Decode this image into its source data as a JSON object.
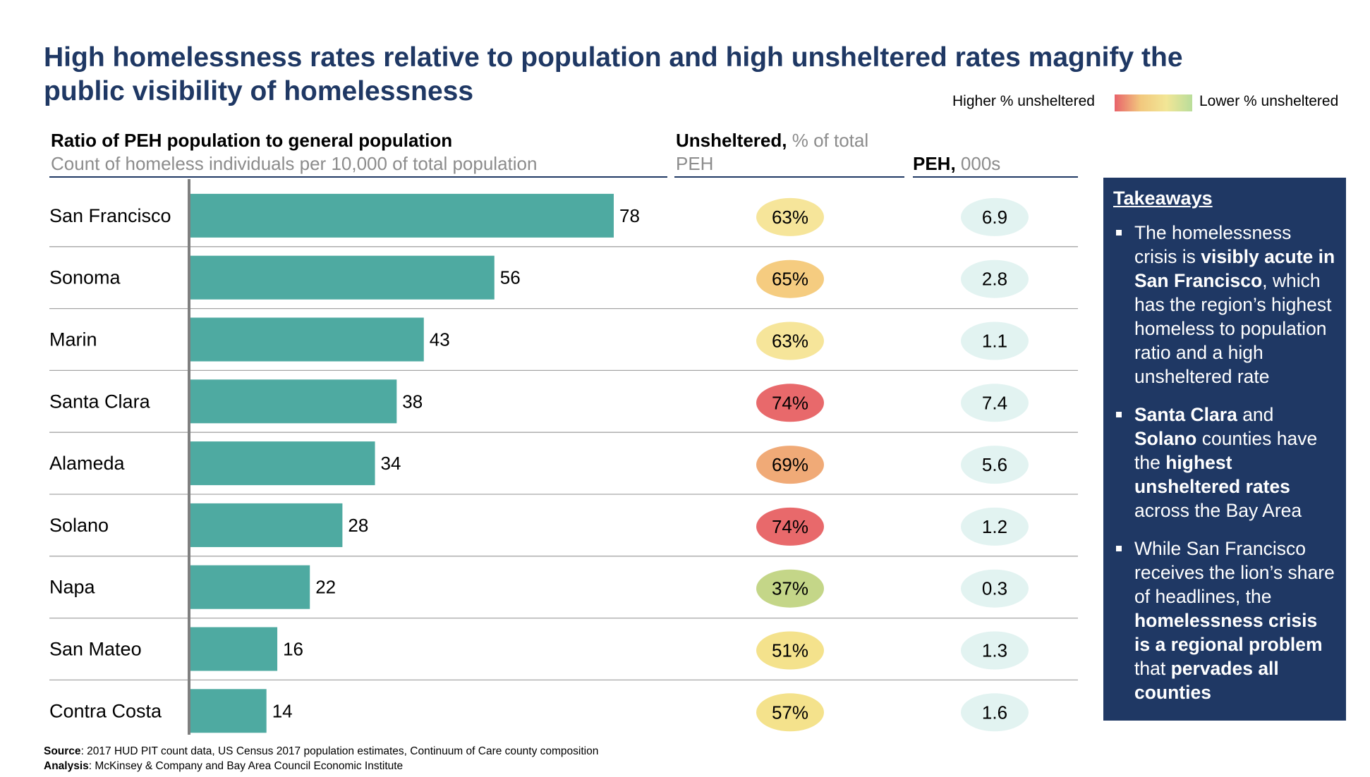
{
  "title": "High homelessness rates relative to population and high unsheltered rates magnify the public visibility of homelessness",
  "legend": {
    "left_label": "Higher % unsheltered",
    "right_label": "Lower % unsheltered"
  },
  "headers": {
    "ratio_title": "Ratio of PEH population to general population",
    "ratio_subtitle": "Count of homeless individuals per 10,000 of total population",
    "unsheltered_bold": "Unsheltered,",
    "unsheltered_gray": " % of total PEH",
    "peh_bold": "PEH,",
    "peh_gray": " 000s"
  },
  "chart_data": {
    "type": "bar",
    "orientation": "horizontal",
    "categories": [
      "San Francisco",
      "Sonoma",
      "Marin",
      "Santa Clara",
      "Alameda",
      "Solano",
      "Napa",
      "San Mateo",
      "Contra Costa"
    ],
    "series": [
      {
        "name": "Ratio of PEH population to general population",
        "values": [
          78,
          56,
          43,
          38,
          34,
          28,
          22,
          16,
          14
        ]
      }
    ],
    "unsheltered": [
      "63%",
      "65%",
      "63%",
      "74%",
      "69%",
      "74%",
      "37%",
      "51%",
      "57%"
    ],
    "unsheltered_colors": [
      "#f6e59a",
      "#f5cc80",
      "#f6e59a",
      "#e8696b",
      "#f0aa77",
      "#e8696b",
      "#c4d688",
      "#f4e28c",
      "#f4e28c"
    ],
    "peh": [
      "6.9",
      "2.8",
      "1.1",
      "7.4",
      "5.6",
      "1.2",
      "0.3",
      "1.3",
      "1.6"
    ],
    "peh_color": "#e2f3f1",
    "bar_color": "#4eaaa1",
    "ylim": [
      0,
      78
    ]
  },
  "takeaways": {
    "title": "Takeaways",
    "items": [
      [
        {
          "t": "The homelessness crisis is ",
          "b": false
        },
        {
          "t": "visibly acute in San Francisco",
          "b": true
        },
        {
          "t": ", which has the region’s highest homeless to population ratio and a high unsheltered rate",
          "b": false
        }
      ],
      [
        {
          "t": "Santa Clara",
          "b": true
        },
        {
          "t": " and ",
          "b": false
        },
        {
          "t": "Solano",
          "b": true
        },
        {
          "t": " counties have the ",
          "b": false
        },
        {
          "t": "highest unsheltered rates",
          "b": true
        },
        {
          "t": " across the Bay Area",
          "b": false
        }
      ],
      [
        {
          "t": "While San Francisco receives the lion’s share of headlines, the ",
          "b": false
        },
        {
          "t": "homelessness crisis is a regional problem",
          "b": true
        },
        {
          "t": " that ",
          "b": false
        },
        {
          "t": "pervades all counties",
          "b": true
        }
      ]
    ]
  },
  "footer": {
    "source_label": "Source",
    "source_text": ": 2017 HUD PIT count data, US Census 2017 population estimates, Continuum of Care county composition",
    "analysis_label": "Analysis",
    "analysis_text": ": McKinsey & Company and Bay Area Council Economic Institute"
  }
}
